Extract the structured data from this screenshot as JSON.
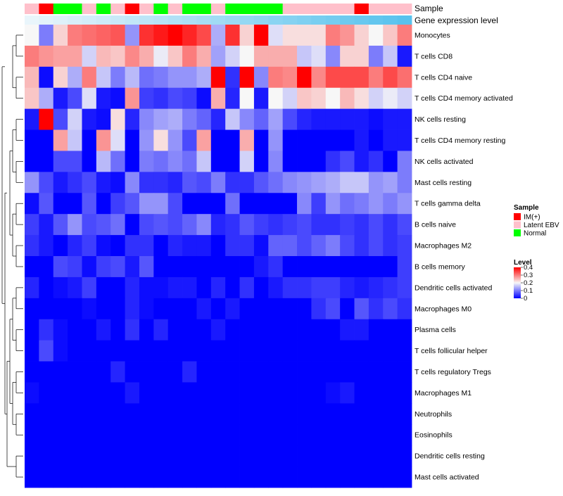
{
  "chart_data": {
    "type": "heatmap",
    "title": "",
    "colorbar": {
      "title": "Level",
      "min": 0,
      "max": 0.4,
      "ticks": [
        0,
        0.1,
        0.2,
        0.3,
        0.4
      ],
      "tick_labels": [
        "0",
        "0.1",
        "0.2",
        "0.3",
        "0.4"
      ],
      "low_color": "#0000ff",
      "mid_color": "#f7f7f7",
      "high_color": "#ff0000",
      "midpoint": 0.2
    },
    "annotations": [
      {
        "title": "Sample",
        "type": "categorical",
        "legend_title": "Sample",
        "legend_entries": [
          {
            "label": "IM(+)",
            "color": "#ff0000"
          },
          {
            "label": "Latent EBV",
            "color": "#ffc0cb"
          },
          {
            "label": "Normal",
            "color": "#00ff00"
          }
        ],
        "values": [
          "Latent EBV",
          "IM(+)",
          "Normal",
          "Normal",
          "Latent EBV",
          "Normal",
          "Latent EBV",
          "IM(+)",
          "Latent EBV",
          "Normal",
          "Latent EBV",
          "Normal",
          "Normal",
          "Latent EBV",
          "Normal",
          "Normal",
          "Normal",
          "Normal",
          "Latent EBV",
          "Latent EBV",
          "Latent EBV",
          "Latent EBV",
          "Latent EBV",
          "IM(+)",
          "Latent EBV",
          "Latent EBV",
          "Latent EBV"
        ]
      },
      {
        "title": "Gene expression level",
        "type": "continuous",
        "values": [
          0.02,
          0.03,
          0.04,
          0.05,
          0.06,
          0.07,
          0.08,
          0.09,
          0.1,
          0.11,
          0.12,
          0.13,
          0.14,
          0.15,
          0.16,
          0.17,
          0.18,
          0.19,
          0.2,
          0.21,
          0.22,
          0.23,
          0.24,
          0.25,
          0.26,
          0.27,
          0.28
        ],
        "low_color": "#e9f5fb",
        "high_color": "#58c2ed"
      }
    ],
    "row_labels": [
      "Monocytes",
      "T cells CD8",
      "T cells CD4 naive",
      "T cells CD4 memory activated",
      "NK cells resting",
      "T cells CD4 memory resting",
      "NK cells activated",
      "Mast cells resting",
      "T cells gamma delta",
      "B cells naive",
      "Macrophages M2",
      "B cells memory",
      "Dendritic cells activated",
      "Macrophages M0",
      "Plasma cells",
      "T cells follicular helper",
      "T cells regulatory  Tregs",
      "Macrophages M1",
      "Neutrophils",
      "Eosinophils",
      "Dendritic cells resting",
      "Mast cells activated"
    ],
    "column_count": 27,
    "values": [
      [
        0.2,
        0.1,
        0.23,
        0.3,
        0.31,
        0.32,
        0.33,
        0.12,
        0.36,
        0.38,
        0.4,
        0.37,
        0.34,
        0.14,
        0.36,
        0.23,
        0.4,
        0.18,
        0.22,
        0.22,
        0.22,
        0.3,
        0.28,
        0.23,
        0.2,
        0.24,
        0.3
      ],
      [
        0.3,
        0.28,
        0.27,
        0.27,
        0.17,
        0.25,
        0.24,
        0.29,
        0.26,
        0.19,
        0.24,
        0.3,
        0.26,
        0.13,
        0.17,
        0.2,
        0.26,
        0.26,
        0.26,
        0.16,
        0.18,
        0.11,
        0.23,
        0.23,
        0.1,
        0.16,
        0.02
      ],
      [
        0.25,
        0.01,
        0.23,
        0.14,
        0.3,
        0.16,
        0.1,
        0.15,
        0.09,
        0.1,
        0.12,
        0.12,
        0.14,
        0.4,
        0.04,
        0.4,
        0.11,
        0.3,
        0.29,
        0.4,
        0.29,
        0.34,
        0.34,
        0.34,
        0.3,
        0.34,
        0.31
      ],
      [
        0.24,
        0.14,
        0.02,
        0.06,
        0.18,
        0.02,
        0.01,
        0.28,
        0.05,
        0.04,
        0.06,
        0.05,
        0.01,
        0.26,
        0.03,
        0.2,
        0.02,
        0.2,
        0.17,
        0.24,
        0.23,
        0.2,
        0.25,
        0.22,
        0.17,
        0.19,
        0.17
      ],
      [
        0.02,
        0.4,
        0.06,
        0.17,
        0.02,
        0.01,
        0.22,
        0.03,
        0.11,
        0.13,
        0.14,
        0.1,
        0.08,
        0.03,
        0.16,
        0.11,
        0.08,
        0.13,
        0.06,
        0.03,
        0.02,
        0.02,
        0.02,
        0.02,
        0.01,
        0.02,
        0.02
      ],
      [
        0.0,
        0.0,
        0.27,
        0.16,
        0.0,
        0.28,
        0.18,
        0.0,
        0.12,
        0.22,
        0.12,
        0.06,
        0.27,
        0.0,
        0.0,
        0.26,
        0.0,
        0.12,
        0.0,
        0.0,
        0.0,
        0.0,
        0.0,
        0.02,
        0.0,
        0.02,
        0.02
      ],
      [
        0.0,
        0.0,
        0.06,
        0.06,
        0.0,
        0.15,
        0.09,
        0.0,
        0.1,
        0.09,
        0.11,
        0.09,
        0.16,
        0.0,
        0.0,
        0.17,
        0.0,
        0.11,
        0.0,
        0.0,
        0.0,
        0.04,
        0.06,
        0.02,
        0.04,
        0.0,
        0.1
      ],
      [
        0.12,
        0.06,
        0.02,
        0.04,
        0.06,
        0.02,
        0.01,
        0.11,
        0.04,
        0.04,
        0.03,
        0.07,
        0.06,
        0.1,
        0.04,
        0.04,
        0.07,
        0.09,
        0.11,
        0.12,
        0.13,
        0.14,
        0.16,
        0.16,
        0.12,
        0.13,
        0.1
      ],
      [
        0.01,
        0.07,
        0.0,
        0.0,
        0.07,
        0.0,
        0.05,
        0.07,
        0.12,
        0.12,
        0.06,
        0.0,
        0.0,
        0.0,
        0.09,
        0.0,
        0.0,
        0.0,
        0.0,
        0.11,
        0.05,
        0.12,
        0.09,
        0.1,
        0.12,
        0.1,
        0.12
      ],
      [
        0.05,
        0.02,
        0.07,
        0.12,
        0.06,
        0.07,
        0.09,
        0.0,
        0.06,
        0.07,
        0.06,
        0.08,
        0.11,
        0.03,
        0.04,
        0.07,
        0.05,
        0.04,
        0.05,
        0.06,
        0.04,
        0.04,
        0.05,
        0.04,
        0.06,
        0.04,
        0.06
      ],
      [
        0.04,
        0.02,
        0.0,
        0.03,
        0.05,
        0.01,
        0.0,
        0.04,
        0.04,
        0.0,
        0.03,
        0.02,
        0.02,
        0.0,
        0.04,
        0.04,
        0.01,
        0.08,
        0.08,
        0.06,
        0.08,
        0.1,
        0.06,
        0.04,
        0.06,
        0.04,
        0.05
      ],
      [
        0.0,
        0.0,
        0.06,
        0.05,
        0.01,
        0.05,
        0.06,
        0.02,
        0.07,
        0.0,
        0.0,
        0.0,
        0.0,
        0.0,
        0.0,
        0.0,
        0.02,
        0.04,
        0.0,
        0.0,
        0.0,
        0.0,
        0.0,
        0.0,
        0.0,
        0.0,
        0.05
      ],
      [
        0.03,
        0.0,
        0.01,
        0.02,
        0.05,
        0.0,
        0.0,
        0.03,
        0.01,
        0.01,
        0.02,
        0.02,
        0.0,
        0.03,
        0.0,
        0.04,
        0.0,
        0.02,
        0.04,
        0.04,
        0.05,
        0.05,
        0.03,
        0.02,
        0.03,
        0.04,
        0.05
      ],
      [
        0.0,
        0.0,
        0.0,
        0.0,
        0.01,
        0.0,
        0.0,
        0.03,
        0.01,
        0.0,
        0.0,
        0.0,
        0.02,
        0.0,
        0.02,
        0.0,
        0.0,
        0.0,
        0.0,
        0.0,
        0.04,
        0.06,
        0.0,
        0.07,
        0.04,
        0.06,
        0.04
      ],
      [
        0.0,
        0.04,
        0.01,
        0.0,
        0.0,
        0.02,
        0.0,
        0.04,
        0.0,
        0.03,
        0.0,
        0.0,
        0.0,
        0.02,
        0.0,
        0.0,
        0.0,
        0.0,
        0.0,
        0.0,
        0.0,
        0.0,
        0.02,
        0.02,
        0.0,
        0.0,
        0.0
      ],
      [
        0.0,
        0.06,
        0.01,
        0.0,
        0.0,
        0.0,
        0.0,
        0.0,
        0.0,
        0.0,
        0.0,
        0.0,
        0.0,
        0.0,
        0.0,
        0.0,
        0.0,
        0.0,
        0.0,
        0.0,
        0.0,
        0.0,
        0.0,
        0.0,
        0.0,
        0.0,
        0.0
      ],
      [
        0.0,
        0.0,
        0.0,
        0.0,
        0.0,
        0.0,
        0.03,
        0.0,
        0.0,
        0.0,
        0.0,
        0.03,
        0.0,
        0.0,
        0.0,
        0.0,
        0.0,
        0.0,
        0.0,
        0.0,
        0.0,
        0.0,
        0.0,
        0.0,
        0.0,
        0.0,
        0.0
      ],
      [
        0.01,
        0.0,
        0.0,
        0.0,
        0.0,
        0.0,
        0.0,
        0.02,
        0.0,
        0.0,
        0.0,
        0.0,
        0.0,
        0.0,
        0.0,
        0.0,
        0.0,
        0.0,
        0.0,
        0.0,
        0.0,
        0.01,
        0.02,
        0.0,
        0.0,
        0.0,
        0.0
      ],
      [
        0.0,
        0.0,
        0.0,
        0.0,
        0.0,
        0.0,
        0.0,
        0.0,
        0.0,
        0.0,
        0.0,
        0.0,
        0.0,
        0.0,
        0.0,
        0.0,
        0.0,
        0.0,
        0.0,
        0.0,
        0.0,
        0.0,
        0.0,
        0.0,
        0.0,
        0.0,
        0.0
      ],
      [
        0.0,
        0.0,
        0.0,
        0.0,
        0.0,
        0.0,
        0.0,
        0.0,
        0.0,
        0.0,
        0.0,
        0.0,
        0.0,
        0.0,
        0.0,
        0.0,
        0.0,
        0.0,
        0.0,
        0.0,
        0.0,
        0.0,
        0.0,
        0.0,
        0.0,
        0.0,
        0.0
      ],
      [
        0.0,
        0.0,
        0.0,
        0.0,
        0.0,
        0.0,
        0.0,
        0.0,
        0.0,
        0.0,
        0.0,
        0.0,
        0.0,
        0.0,
        0.0,
        0.0,
        0.0,
        0.0,
        0.0,
        0.0,
        0.0,
        0.0,
        0.0,
        0.0,
        0.0,
        0.0,
        0.0
      ],
      [
        0.0,
        0.0,
        0.0,
        0.0,
        0.0,
        0.0,
        0.0,
        0.0,
        0.0,
        0.0,
        0.0,
        0.0,
        0.0,
        0.0,
        0.0,
        0.0,
        0.0,
        0.0,
        0.0,
        0.0,
        0.0,
        0.0,
        0.0,
        0.0,
        0.0,
        0.0,
        0.0
      ]
    ],
    "row_dendrogram": {
      "merges": [
        [
          0,
          1
        ],
        [
          2,
          3
        ],
        [
          4,
          5
        ],
        [
          6,
          7
        ],
        [
          8,
          9
        ],
        [
          10,
          11
        ],
        [
          12,
          13
        ],
        [
          14,
          15
        ],
        [
          16,
          17
        ],
        [
          18,
          19
        ],
        [
          20,
          21
        ]
      ]
    }
  }
}
